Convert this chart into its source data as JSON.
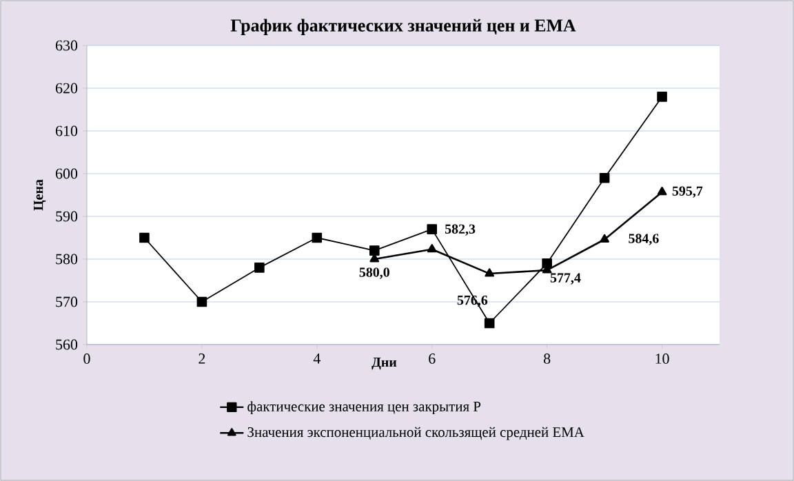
{
  "chart_data": {
    "type": "line",
    "title": "График фактических значений цен и EMA",
    "xlabel": "Дни",
    "ylabel": "Цена",
    "xlim": [
      0,
      11
    ],
    "xticks": [
      0,
      2,
      4,
      6,
      8,
      10
    ],
    "ylim": [
      560,
      630
    ],
    "yticks": [
      560,
      570,
      580,
      590,
      600,
      610,
      620,
      630
    ],
    "grid": "y",
    "legend": "bottom",
    "series": [
      {
        "name": "фактические значения цен закрытия P",
        "color": "#000000",
        "marker": "square",
        "x": [
          1,
          2,
          3,
          4,
          5,
          6,
          7,
          8,
          9,
          10
        ],
        "values": [
          585,
          570,
          578,
          585,
          582,
          587,
          565,
          579,
          599,
          618
        ]
      },
      {
        "name": "Значения экспоненциальной скользящей средней EMA",
        "color": "#000000",
        "marker": "triangle",
        "x": [
          5,
          6,
          7,
          8,
          9,
          10
        ],
        "values": [
          580.0,
          582.3,
          576.6,
          577.4,
          584.6,
          595.7
        ],
        "value_labels": [
          "580,0",
          "582,3",
          "576,6",
          "577,4",
          "584,6",
          "595,7"
        ]
      }
    ]
  }
}
